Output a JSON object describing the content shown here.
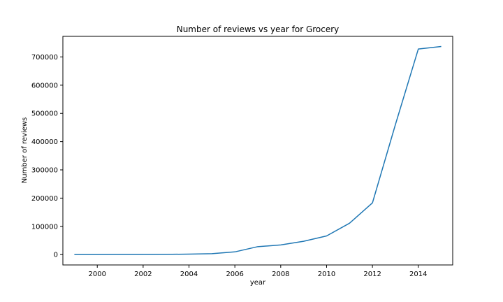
{
  "chart_data": {
    "type": "line",
    "title": "Number of reviews vs year for Grocery",
    "xlabel": "year",
    "ylabel": "Number of reviews",
    "xlim": [
      1998.5,
      2015.5
    ],
    "ylim": [
      -36800,
      773000
    ],
    "grid": false,
    "x_ticks": [
      2000,
      2002,
      2004,
      2006,
      2008,
      2010,
      2012,
      2014
    ],
    "y_ticks": [
      0,
      100000,
      200000,
      300000,
      400000,
      500000,
      600000,
      700000
    ],
    "x_tick_labels": [
      "2000",
      "2002",
      "2004",
      "2006",
      "2008",
      "2010",
      "2012",
      "2014"
    ],
    "y_tick_labels": [
      "0",
      "100000",
      "200000",
      "300000",
      "400000",
      "500000",
      "600000",
      "700000"
    ],
    "line_color": "#1f77b4",
    "series": [
      {
        "x": [
          1999,
          2000,
          2001,
          2002,
          2003,
          2004,
          2005,
          2006,
          2007,
          2008,
          2009,
          2010,
          2011,
          2012,
          2013,
          2014,
          2015
        ],
        "y": [
          0,
          100,
          200,
          400,
          700,
          1500,
          3000,
          9500,
          28000,
          34000,
          47000,
          66000,
          111000,
          183000,
          460000,
          728000,
          737000
        ]
      }
    ]
  }
}
